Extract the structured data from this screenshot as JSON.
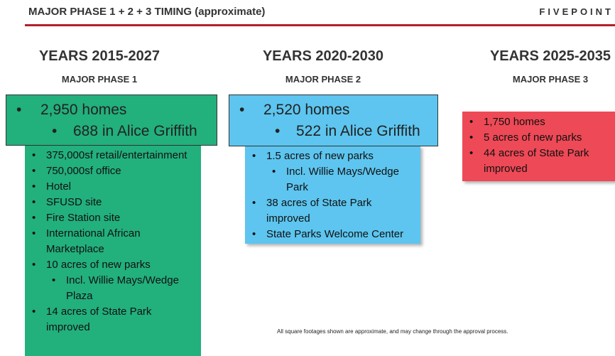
{
  "header": {
    "title": "MAJOR PHASE 1 + 2 + 3 TIMING (approximate)",
    "logo": "FIVEPOINT"
  },
  "phases": [
    {
      "years": "YEARS 2015-2027",
      "phase": "MAJOR PHASE 1",
      "headline": {
        "main": "2,950 homes",
        "sub": "688 in Alice Griffith"
      },
      "items": [
        {
          "text": "375,000sf retail/entertainment"
        },
        {
          "text": "750,000sf office"
        },
        {
          "text": "Hotel"
        },
        {
          "text": "SFUSD site"
        },
        {
          "text": "Fire Station site"
        },
        {
          "text": "International African Marketplace"
        },
        {
          "text": "10 acres of new parks",
          "sub": "Incl. Willie Mays/Wedge Plaza"
        },
        {
          "text": "14 acres of State Park improved"
        }
      ]
    },
    {
      "years": "YEARS 2020-2030",
      "phase": "MAJOR PHASE 2",
      "headline": {
        "main": "2,520 homes",
        "sub": "522 in Alice Griffith"
      },
      "items": [
        {
          "text": "1.5 acres of new parks",
          "sub": "Incl. Willie Mays/Wedge Park"
        },
        {
          "text": "38 acres of State Park improved"
        },
        {
          "text": "State Parks Welcome Center"
        }
      ]
    },
    {
      "years": "YEARS 2025-2035",
      "phase": "MAJOR PHASE 3",
      "items": [
        {
          "text": "1,750 homes"
        },
        {
          "text": "5 acres of new parks"
        },
        {
          "text": "44 acres of State Park improved"
        }
      ]
    }
  ],
  "footnote": "All square footages shown are approximate, and may change through the approval process."
}
